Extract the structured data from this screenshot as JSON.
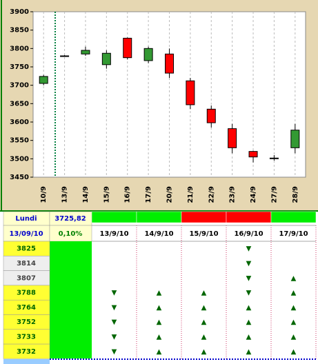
{
  "chart_data": {
    "type": "candlestick",
    "categories": [
      "10/9",
      "13/9",
      "14/9",
      "15/9",
      "16/9",
      "17/9",
      "20/9",
      "21/9",
      "22/9",
      "23/9",
      "24/9",
      "27/9",
      "28/9"
    ],
    "open": [
      3705,
      3780,
      3785,
      3756,
      3828,
      3767,
      3785,
      3712,
      3635,
      3582,
      3520,
      3502,
      3530
    ],
    "high": [
      3728,
      3782,
      3805,
      3795,
      3830,
      3805,
      3800,
      3720,
      3645,
      3595,
      3522,
      3510,
      3595
    ],
    "low": [
      3700,
      3778,
      3780,
      3745,
      3770,
      3760,
      3720,
      3635,
      3585,
      3515,
      3490,
      3495,
      3515
    ],
    "close": [
      3724,
      3780,
      3795,
      3787,
      3775,
      3800,
      3733,
      3647,
      3598,
      3530,
      3505,
      3502,
      3578
    ],
    "up_color": "#339933",
    "down_color": "#ff0000",
    "ylim": [
      3450,
      3900
    ],
    "yticks": [
      3450,
      3500,
      3550,
      3600,
      3650,
      3700,
      3750,
      3800,
      3850,
      3900
    ],
    "grid": true
  },
  "table": {
    "header": [
      "Lundi",
      "3725,82"
    ],
    "subheader": [
      "13/09/10",
      "0,10%"
    ],
    "dates": [
      "13/9/10",
      "14/9/10",
      "15/9/10",
      "16/9/10",
      "17/9/10"
    ],
    "date_colors": [
      "#00ee00",
      "#00ee00",
      "#ff0000",
      "#ff0000",
      "#00ee00"
    ],
    "rows": [
      {
        "level": 3825,
        "signals": [
          null,
          null,
          null,
          "▼",
          null
        ]
      },
      {
        "level": 3814,
        "signals": [
          null,
          null,
          null,
          "▼",
          null
        ]
      },
      {
        "level": 3807,
        "signals": [
          null,
          null,
          null,
          "▼",
          "▲"
        ]
      },
      {
        "level": 3788,
        "signals": [
          "▼",
          "▲",
          "▲",
          "▼",
          "▲"
        ]
      },
      {
        "level": 3764,
        "signals": [
          "▼",
          "▲",
          "▲",
          "▲",
          "▲"
        ]
      },
      {
        "level": 3752,
        "signals": [
          "▼",
          "▲",
          "▲",
          "▲",
          "▲"
        ]
      },
      {
        "level": 3733,
        "signals": [
          "▼",
          "▲",
          "▲",
          "▲",
          "▲"
        ]
      },
      {
        "level": 3732,
        "signals": [
          "▼",
          "▲",
          "▲",
          "▲",
          "▲"
        ]
      }
    ]
  }
}
